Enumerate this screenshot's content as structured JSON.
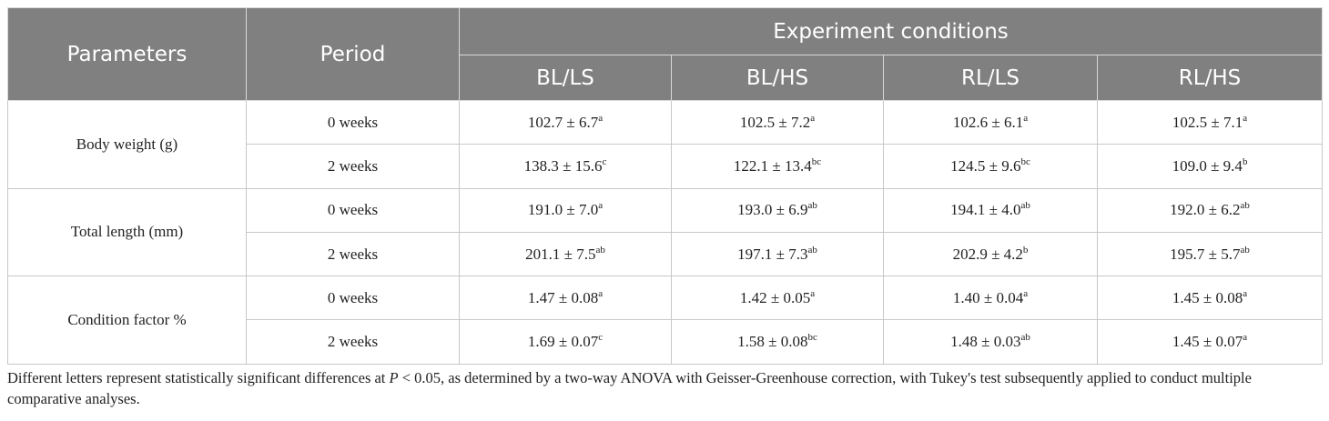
{
  "header": {
    "parameters": "Parameters",
    "period": "Period",
    "group": "Experiment conditions",
    "conditions": [
      "BL/LS",
      "BL/HS",
      "RL/LS",
      "RL/HS"
    ]
  },
  "rows": [
    {
      "parameter": "Body weight (g)",
      "periods": [
        {
          "period": "0 weeks",
          "cells": [
            {
              "value": "102.7 ± 6.7",
              "sup": "a"
            },
            {
              "value": "102.5 ± 7.2",
              "sup": "a"
            },
            {
              "value": "102.6 ± 6.1",
              "sup": "a"
            },
            {
              "value": "102.5 ± 7.1",
              "sup": "a"
            }
          ]
        },
        {
          "period": "2 weeks",
          "cells": [
            {
              "value": "138.3 ± 15.6",
              "sup": "c"
            },
            {
              "value": "122.1 ± 13.4",
              "sup": "bc"
            },
            {
              "value": "124.5 ± 9.6",
              "sup": "bc"
            },
            {
              "value": "109.0 ± 9.4",
              "sup": "b"
            }
          ]
        }
      ]
    },
    {
      "parameter": "Total length (mm)",
      "periods": [
        {
          "period": "0 weeks",
          "cells": [
            {
              "value": "191.0 ± 7.0",
              "sup": "a"
            },
            {
              "value": "193.0 ± 6.9",
              "sup": "ab"
            },
            {
              "value": "194.1 ± 4.0",
              "sup": "ab"
            },
            {
              "value": "192.0 ± 6.2",
              "sup": "ab"
            }
          ]
        },
        {
          "period": "2 weeks",
          "cells": [
            {
              "value": "201.1 ± 7.5",
              "sup": "ab"
            },
            {
              "value": "197.1 ± 7.3",
              "sup": "ab"
            },
            {
              "value": "202.9 ± 4.2",
              "sup": "b"
            },
            {
              "value": "195.7 ± 5.7",
              "sup": "ab"
            }
          ]
        }
      ]
    },
    {
      "parameter": "Condition factor %",
      "periods": [
        {
          "period": "0 weeks",
          "cells": [
            {
              "value": "1.47 ± 0.08",
              "sup": "a"
            },
            {
              "value": "1.42 ± 0.05",
              "sup": "a"
            },
            {
              "value": "1.40 ± 0.04",
              "sup": "a"
            },
            {
              "value": "1.45 ± 0.08",
              "sup": "a"
            }
          ]
        },
        {
          "period": "2 weeks",
          "cells": [
            {
              "value": "1.69 ± 0.07",
              "sup": "c"
            },
            {
              "value": "1.58 ± 0.08",
              "sup": "bc"
            },
            {
              "value": "1.48 ± 0.03",
              "sup": "ab"
            },
            {
              "value": "1.45 ± 0.07",
              "sup": "a"
            }
          ]
        }
      ]
    }
  ],
  "footnote": {
    "before": "Different letters represent statistically significant differences at ",
    "italic": "P",
    "after": " < 0.05, as determined by a two-way ANOVA with Geisser-Greenhouse correction, with Tukey's test subsequently applied to conduct multiple comparative analyses."
  }
}
